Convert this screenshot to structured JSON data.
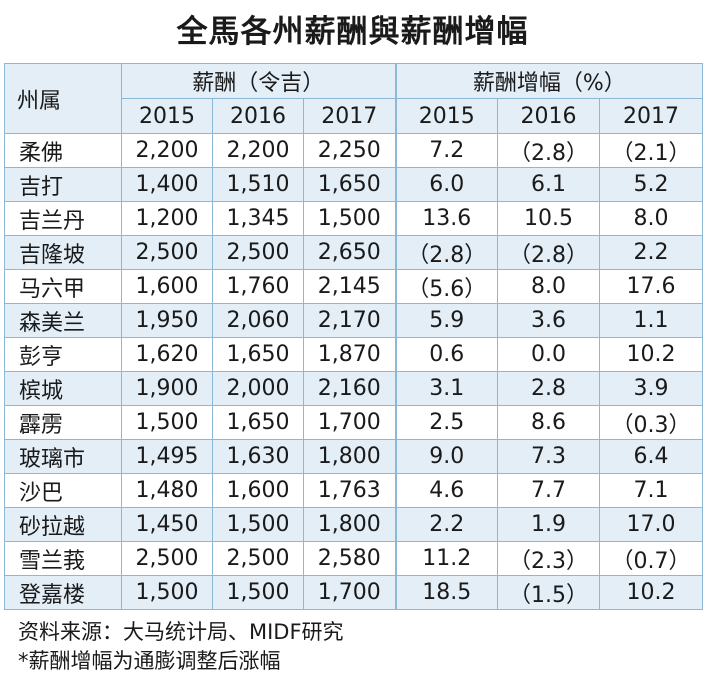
{
  "title": "全馬各州薪酬與薪酬增幅",
  "table": {
    "state_header": "州属",
    "group_salary": "薪酬（令吉）",
    "group_growth": "薪酬增幅（%）",
    "years": [
      "2015",
      "2016",
      "2017",
      "2015",
      "2016",
      "2017"
    ],
    "rows": [
      {
        "state": "柔佛",
        "values": [
          "2,200",
          "2,200",
          "2,250",
          "7.2",
          "（2.8）",
          "（2.1）"
        ]
      },
      {
        "state": "吉打",
        "values": [
          "1,400",
          "1,510",
          "1,650",
          "6.0",
          "6.1",
          "5.2"
        ]
      },
      {
        "state": "吉兰丹",
        "values": [
          "1,200",
          "1,345",
          "1,500",
          "13.6",
          "10.5",
          "8.0"
        ]
      },
      {
        "state": "吉隆坡",
        "values": [
          "2,500",
          "2,500",
          "2,650",
          "（2.8）",
          "（2.8）",
          "2.2"
        ]
      },
      {
        "state": "马六甲",
        "values": [
          "1,600",
          "1,760",
          "2,145",
          "（5.6）",
          "8.0",
          "17.6"
        ]
      },
      {
        "state": "森美兰",
        "values": [
          "1,950",
          "2,060",
          "2,170",
          "5.9",
          "3.6",
          "1.1"
        ]
      },
      {
        "state": "彭亨",
        "values": [
          "1,620",
          "1,650",
          "1,870",
          "0.6",
          "0.0",
          "10.2"
        ]
      },
      {
        "state": "槟城",
        "values": [
          "1,900",
          "2,000",
          "2,160",
          "3.1",
          "2.8",
          "3.9"
        ]
      },
      {
        "state": "霹雳",
        "values": [
          "1,500",
          "1,650",
          "1,700",
          "2.5",
          "8.6",
          "（0.3）"
        ]
      },
      {
        "state": "玻璃市",
        "values": [
          "1,495",
          "1,630",
          "1,800",
          "9.0",
          "7.3",
          "6.4"
        ]
      },
      {
        "state": "沙巴",
        "values": [
          "1,480",
          "1,600",
          "1,763",
          "4.6",
          "7.7",
          "7.1"
        ]
      },
      {
        "state": "砂拉越",
        "values": [
          "1,450",
          "1,500",
          "1,800",
          "2.2",
          "1.9",
          "17.0"
        ]
      },
      {
        "state": "雪兰莪",
        "values": [
          "2,500",
          "2,500",
          "2,580",
          "11.2",
          "（2.3）",
          "（0.7）"
        ]
      },
      {
        "state": "登嘉楼",
        "values": [
          "1,500",
          "1,500",
          "1,700",
          "18.5",
          "（1.5）",
          "10.2"
        ]
      }
    ]
  },
  "footer": {
    "source": "资料来源：大马统计局、MIDF研究",
    "note": "*薪酬增幅为通膨调整后涨幅"
  }
}
